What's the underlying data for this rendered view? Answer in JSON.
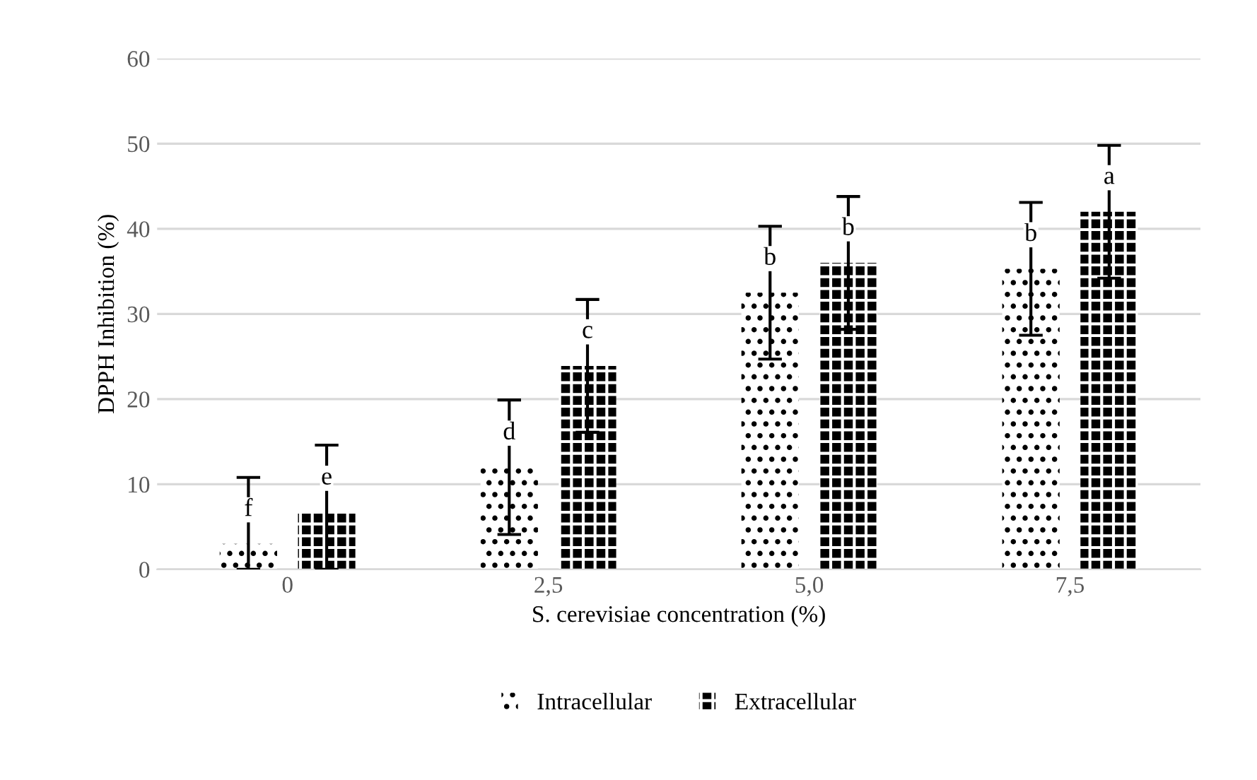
{
  "chart_data": {
    "type": "bar",
    "categories": [
      "0",
      "2,5",
      "5,0",
      "7,5"
    ],
    "xlabel": "S. cerevisiae concentration (%)",
    "ylabel": "DPPH Inhibition (%)",
    "series": [
      {
        "name": "Intracellular",
        "color": "#000000",
        "values": [
          3,
          12,
          32.5,
          35.3
        ],
        "errors": [
          [
            0,
            10.8
          ],
          7.9,
          7.8,
          7.8
        ],
        "value_labels": [
          "f",
          "d",
          "b",
          "b"
        ]
      },
      {
        "name": "Extracellular",
        "color": "#000000",
        "values": [
          6.7,
          23.9,
          36,
          42
        ],
        "errors": [
          [
            0,
            14.6
          ],
          7.8,
          7.8,
          7.8
        ],
        "value_labels": [
          "e",
          "c",
          "b",
          "a"
        ]
      }
    ],
    "ylim": [
      0,
      60
    ],
    "yticks": [
      0,
      10,
      20,
      30,
      40,
      50,
      60
    ],
    "grid": "y",
    "legend": "bottom"
  }
}
